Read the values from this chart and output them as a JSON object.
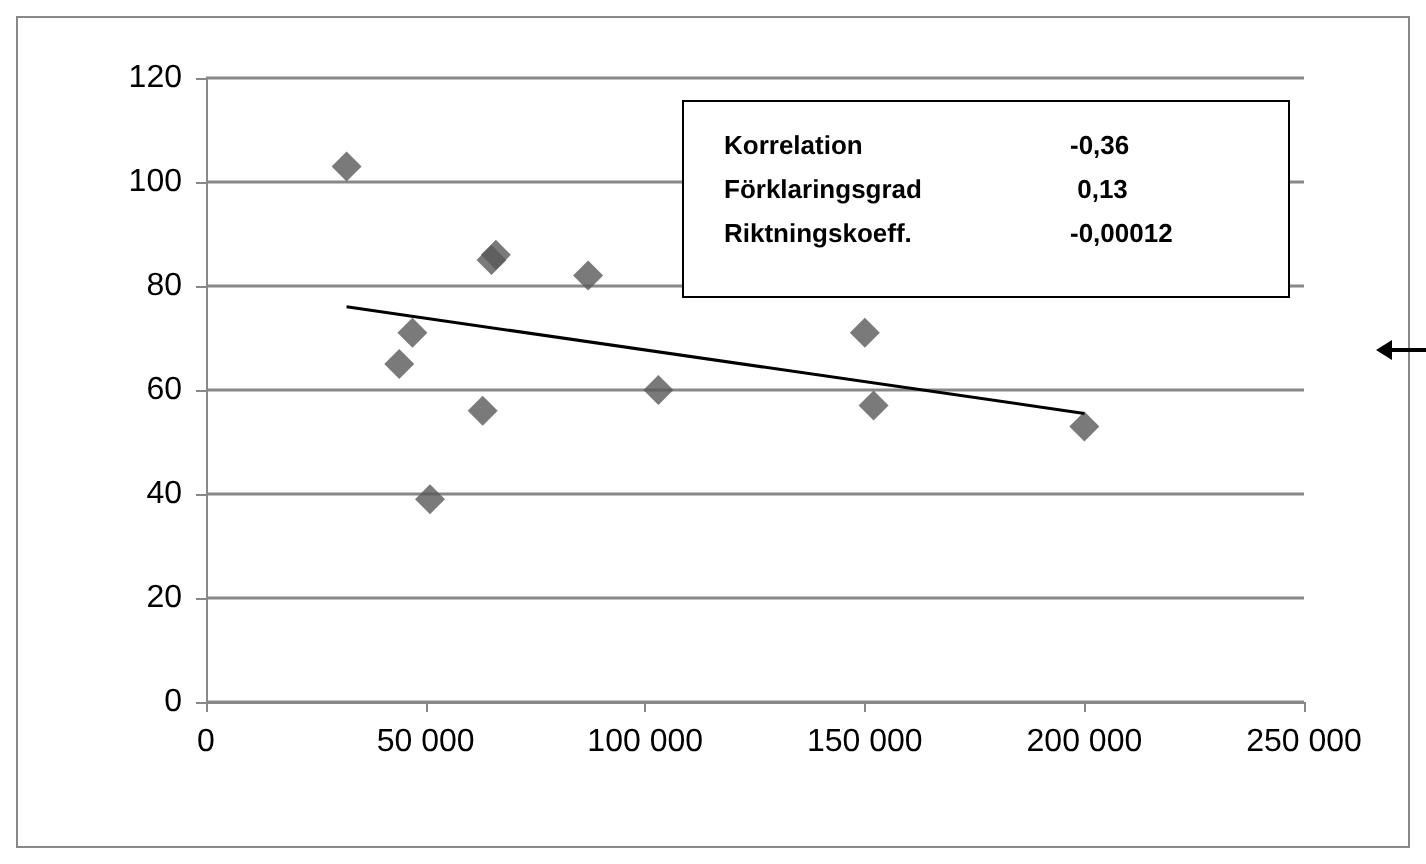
{
  "chart_data": {
    "type": "scatter",
    "marker": "diamond",
    "grid": "y",
    "xlim": [
      0,
      250000
    ],
    "xticks": [
      {
        "value": 0,
        "label": "0"
      },
      {
        "value": 50000,
        "label": "50 000"
      },
      {
        "value": 100000,
        "label": "100 000"
      },
      {
        "value": 150000,
        "label": "150 000"
      },
      {
        "value": 200000,
        "label": "200 000"
      },
      {
        "value": 250000,
        "label": "250 000"
      }
    ],
    "ylim": [
      0,
      120
    ],
    "yticks": [
      0,
      20,
      40,
      60,
      80,
      100,
      120
    ],
    "series": [
      {
        "color": "#595959",
        "x": [
          32000,
          44000,
          47000,
          51000,
          63000,
          65000,
          66000,
          87000,
          103000,
          150000,
          152000,
          200000
        ],
        "values": [
          103,
          65,
          71,
          39,
          56,
          85,
          86,
          82,
          60,
          71,
          57,
          53
        ]
      },
      {
        "type": "line",
        "color": "#000000",
        "marker": "none",
        "x": [
          32000,
          200000
        ],
        "values": [
          76,
          55.5
        ]
      }
    ],
    "annotations": [
      "Korrelation",
      "-0,36",
      "Förklaringsgrad",
      " 0,13",
      "Riktningskoeff.",
      "-0,00012"
    ]
  }
}
